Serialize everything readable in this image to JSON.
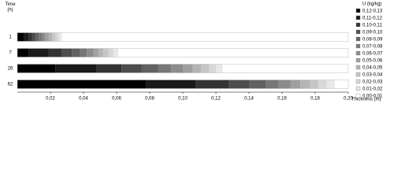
{
  "chart_data": {
    "type": "stacked_barh",
    "y_label": "Time (h)",
    "x_label": "Thickness (m)",
    "legend_title": "U (kg/kg)",
    "categories": [
      "1",
      "7",
      "26",
      "62"
    ],
    "xlim": [
      0,
      0.2
    ],
    "xticks": [
      {
        "value": 0.02,
        "label": "0,02"
      },
      {
        "value": 0.04,
        "label": "0,04"
      },
      {
        "value": 0.06,
        "label": "0,06"
      },
      {
        "value": 0.08,
        "label": "0,08"
      },
      {
        "value": 0.1,
        "label": "0,10"
      },
      {
        "value": 0.12,
        "label": "0,12"
      },
      {
        "value": 0.14,
        "label": "0,14"
      },
      {
        "value": 0.16,
        "label": "0,16"
      },
      {
        "value": 0.18,
        "label": "0,18"
      },
      {
        "value": 0.2,
        "label": "0,20"
      }
    ],
    "legend_position": "right",
    "series": [
      {
        "name": "0,12-0,13",
        "color": "#000000",
        "values": [
          0.004,
          0.007,
          0.023,
          0.078
        ]
      },
      {
        "name": "0,11-0,12",
        "color": "#1a1a1a",
        "values": [
          0.003,
          0.012,
          0.025,
          0.03
        ]
      },
      {
        "name": "0,10-0,11",
        "color": "#333333",
        "values": [
          0.002,
          0.008,
          0.015,
          0.02
        ]
      },
      {
        "name": "0,09-0,10",
        "color": "#4d4d4d",
        "values": [
          0.002,
          0.006,
          0.012,
          0.012
        ]
      },
      {
        "name": "0,08-0,09",
        "color": "#616161",
        "values": [
          0.002,
          0.005,
          0.01,
          0.01
        ]
      },
      {
        "name": "0,07-0,08",
        "color": "#777777",
        "values": [
          0.002,
          0.004,
          0.008,
          0.008
        ]
      },
      {
        "name": "0,06-0,07",
        "color": "#8c8c8c",
        "values": [
          0.002,
          0.004,
          0.007,
          0.007
        ]
      },
      {
        "name": "0,05-0,06",
        "color": "#a0a0a0",
        "values": [
          0.002,
          0.003,
          0.006,
          0.006
        ]
      },
      {
        "name": "0,04-0,05",
        "color": "#b4b4b4",
        "values": [
          0.002,
          0.003,
          0.005,
          0.006
        ]
      },
      {
        "name": "0,03-0,04",
        "color": "#c6c6c6",
        "values": [
          0.002,
          0.003,
          0.005,
          0.005
        ]
      },
      {
        "name": "0,02-0,03",
        "color": "#d8d8d8",
        "values": [
          0.002,
          0.003,
          0.004,
          0.005
        ]
      },
      {
        "name": "0,01-0,02",
        "color": "#e8e8e8",
        "values": [
          0.002,
          0.003,
          0.004,
          0.005
        ]
      },
      {
        "name": "0,00-0,01",
        "color": "#ffffff",
        "values": [
          0.173,
          0.139,
          0.076,
          0.008
        ]
      }
    ]
  }
}
